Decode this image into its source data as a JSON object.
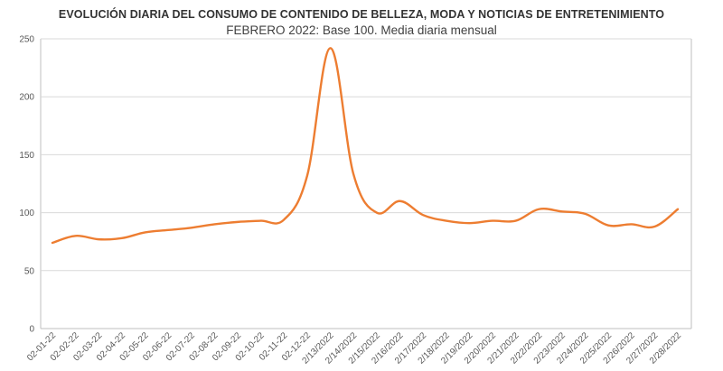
{
  "chart_data": {
    "type": "line",
    "title": "EVOLUCIÓN DIARIA DEL CONSUMO DE CONTENIDO DE BELLEZA, MODA Y NOTICIAS DE ENTRETENIMIENTO",
    "subtitle": "FEBRERO 2022: Base 100. Media diaria mensual",
    "xlabel": "",
    "ylabel": "",
    "ylim": [
      0,
      250
    ],
    "yticks": [
      0,
      50,
      100,
      150,
      200,
      250
    ],
    "grid": true,
    "legend": "none",
    "series_color": "#ED7D31",
    "categories": [
      "02-01-22",
      "02-02-22",
      "02-03-22",
      "02-04-22",
      "02-05-22",
      "02-06-22",
      "02-07-22",
      "02-08-22",
      "02-09-22",
      "02-10-22",
      "02-11-22",
      "02-12-22",
      "2/13/2022",
      "2/14/2022",
      "2/15/2022",
      "2/16/2022",
      "2/17/2022",
      "2/18/2022",
      "2/19/2022",
      "2/20/2022",
      "2/21/2022",
      "2/22/2022",
      "2/23/2022",
      "2/24/2022",
      "2/25/2022",
      "2/26/2022",
      "2/27/2022",
      "2/28/2022"
    ],
    "values": [
      74,
      80,
      77,
      78,
      83,
      85,
      87,
      90,
      92,
      93,
      94,
      132,
      242,
      133,
      100,
      110,
      98,
      93,
      91,
      93,
      93,
      103,
      101,
      99,
      89,
      90,
      88,
      103
    ]
  }
}
